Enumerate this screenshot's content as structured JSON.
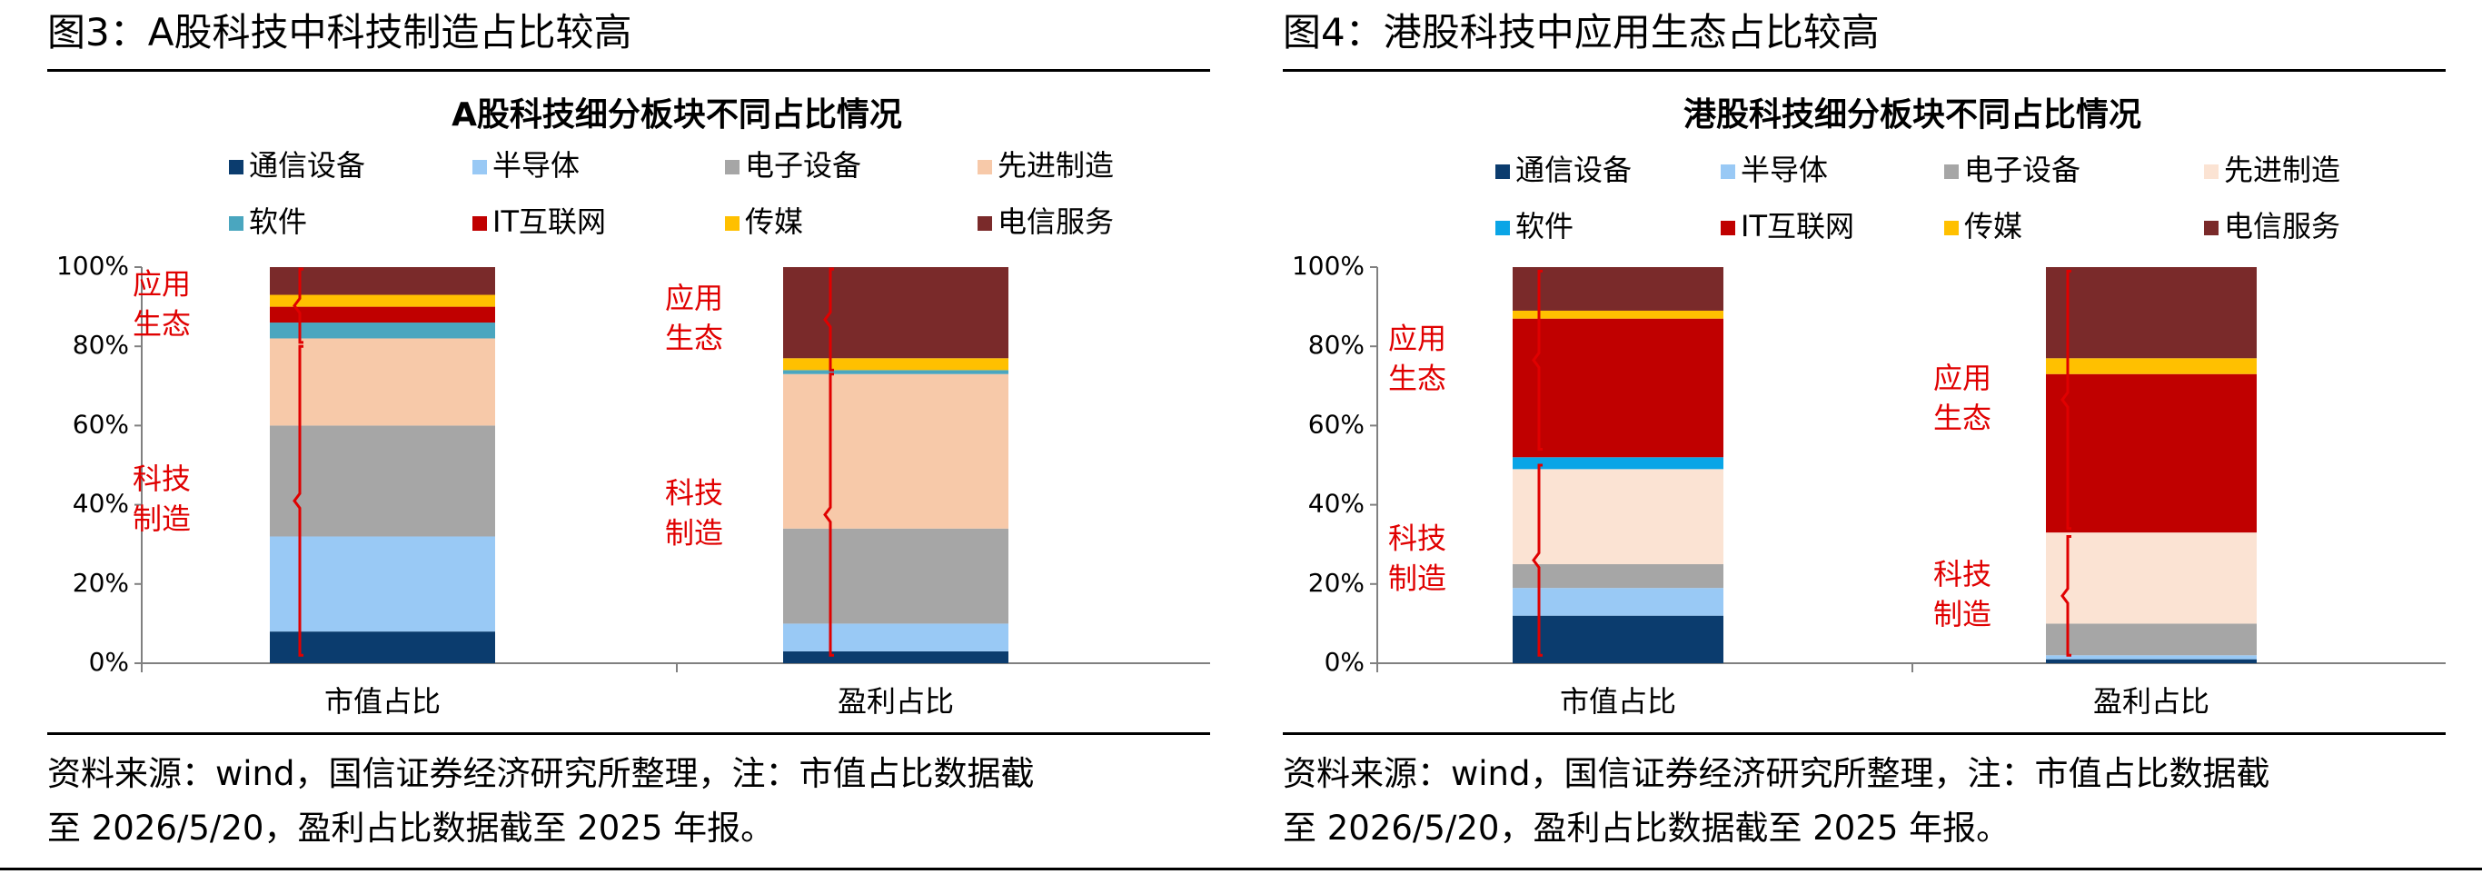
{
  "figures": [
    {
      "figure_title": "图3：A股科技中科技制造占比较高",
      "source_note": "资料来源：wind，国信证券经济研究所整理，注：市值占比数据截",
      "source_note_line2": "至 2026/5/20，盈利占比数据截至 2025 年报。",
      "annotations": {
        "app_ecosystem": [
          "应用",
          "生态"
        ],
        "tech_manufacturing": [
          "科技",
          "制造"
        ]
      }
    },
    {
      "figure_title": "图4：港股科技中应用生态占比较高",
      "source_note": "资料来源：wind，国信证券经济研究所整理，注：市值占比数据截",
      "source_note_line2": "至 2026/5/20，盈利占比数据截至 2025 年报。",
      "annotations": {
        "app_ecosystem": [
          "应用",
          "生态"
        ],
        "tech_manufacturing": [
          "科技",
          "制造"
        ]
      }
    }
  ],
  "colors": {
    "通信设备": "#0b3c6e",
    "半导体": "#99c9f5",
    "电子设备": "#a6a6a6",
    "先进制造": "#f7c9a9",
    "先进制造_港股": "#fbe3d3",
    "软件": "#4aa6bf",
    "软件_港股": "#0aa5e6",
    "IT互联网": "#c00000",
    "传媒": "#ffc000",
    "电信服务": "#7a2a2a",
    "annotation": "#e00000"
  },
  "chart_data": [
    {
      "type": "bar",
      "stacked": true,
      "title": "A股科技细分板块不同占比情况",
      "categories": [
        "市值占比",
        "盈利占比"
      ],
      "yticks": [
        "0%",
        "20%",
        "40%",
        "60%",
        "80%",
        "100%"
      ],
      "ylim": [
        0,
        100
      ],
      "legend_position": "top",
      "series": [
        {
          "name": "通信设备",
          "values": [
            8,
            3
          ]
        },
        {
          "name": "半导体",
          "values": [
            24,
            7
          ]
        },
        {
          "name": "电子设备",
          "values": [
            28,
            24
          ]
        },
        {
          "name": "先进制造",
          "values": [
            22,
            39
          ]
        },
        {
          "name": "软件",
          "values": [
            4,
            1
          ]
        },
        {
          "name": "IT互联网",
          "values": [
            4,
            0
          ]
        },
        {
          "name": "传媒",
          "values": [
            3,
            3
          ]
        },
        {
          "name": "电信服务",
          "values": [
            7,
            23
          ]
        }
      ]
    },
    {
      "type": "bar",
      "stacked": true,
      "title": "港股科技细分板块不同占比情况",
      "categories": [
        "市值占比",
        "盈利占比"
      ],
      "yticks": [
        "0%",
        "20%",
        "40%",
        "60%",
        "80%",
        "100%"
      ],
      "ylim": [
        0,
        100
      ],
      "legend_position": "top",
      "series": [
        {
          "name": "通信设备",
          "values": [
            12,
            1
          ]
        },
        {
          "name": "半导体",
          "values": [
            7,
            1
          ]
        },
        {
          "name": "电子设备",
          "values": [
            6,
            8
          ]
        },
        {
          "name": "先进制造",
          "values": [
            24,
            23
          ]
        },
        {
          "name": "软件",
          "values": [
            3,
            0
          ]
        },
        {
          "name": "IT互联网",
          "values": [
            35,
            40
          ]
        },
        {
          "name": "传媒",
          "values": [
            2,
            4
          ]
        },
        {
          "name": "电信服务",
          "values": [
            11,
            23
          ]
        }
      ]
    }
  ]
}
